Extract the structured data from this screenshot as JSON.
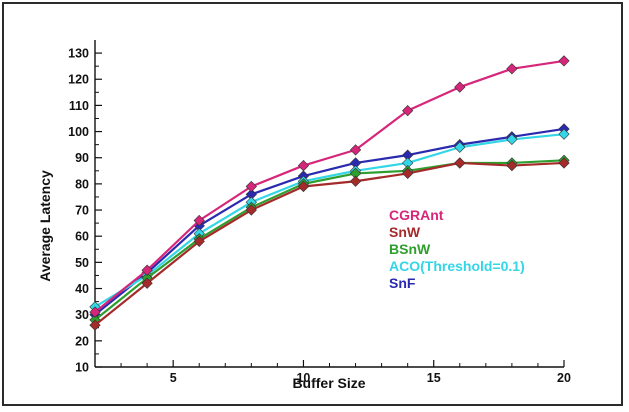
{
  "chart_data": {
    "type": "line",
    "title": "",
    "xlabel": "Buffer Size",
    "ylabel": "Average Latency",
    "xlim": [
      2,
      20
    ],
    "ylim": [
      10,
      135
    ],
    "xticks": [
      5,
      10,
      15,
      20
    ],
    "yticks": [
      10,
      20,
      30,
      40,
      50,
      60,
      70,
      80,
      90,
      100,
      110,
      120,
      130
    ],
    "grid": false,
    "legend_position": "center-right",
    "x": [
      2,
      4,
      6,
      8,
      10,
      12,
      14,
      16,
      18,
      20
    ],
    "series": [
      {
        "name": "CGRAnt",
        "color": "#d6267a",
        "values": [
          31,
          47,
          66,
          79,
          87,
          93,
          108,
          117,
          124,
          127
        ]
      },
      {
        "name": "SnW",
        "color": "#a52a2a",
        "values": [
          26,
          42,
          58,
          70,
          79,
          81,
          84,
          88,
          87,
          88
        ]
      },
      {
        "name": "BSnW",
        "color": "#2e9e2e",
        "values": [
          28,
          44,
          59,
          71,
          80,
          84,
          85,
          88,
          88,
          89
        ]
      },
      {
        "name": "ACO(Threshold=0.1)",
        "color": "#33d6e6",
        "values": [
          33,
          45,
          61,
          73,
          81,
          85,
          88,
          94,
          97,
          99
        ]
      },
      {
        "name": "SnF",
        "color": "#2a2ab0",
        "values": [
          30,
          46,
          64,
          76,
          83,
          88,
          91,
          95,
          98,
          101
        ]
      }
    ]
  }
}
